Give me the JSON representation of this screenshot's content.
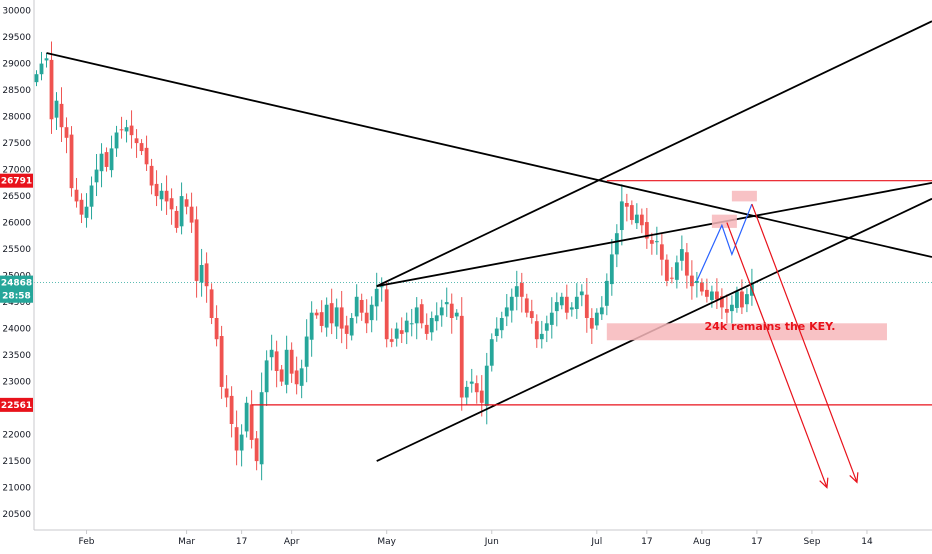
{
  "chart_data": {
    "type": "candlestick",
    "y_ticks": [
      20500,
      21000,
      21500,
      22000,
      22500,
      23000,
      23500,
      24000,
      24500,
      25000,
      25500,
      26000,
      26500,
      27000,
      27500,
      28000,
      28500,
      29000,
      29500,
      30000
    ],
    "x_tick_labels": [
      "Feb",
      "Mar",
      "17",
      "Apr",
      "May",
      "Jun",
      "Jul",
      "17",
      "Aug",
      "17",
      "Sep",
      "14"
    ],
    "x_tick_bars": [
      10,
      30,
      41,
      51,
      70,
      91,
      112,
      122,
      133,
      144,
      155,
      166
    ],
    "ylim": [
      20200,
      30200
    ],
    "xlim": [
      -0.5,
      179
    ],
    "price_badges": [
      {
        "value": 26791,
        "label": "26791",
        "color": "#e8121b"
      },
      {
        "value": 22561,
        "label": "22561",
        "color": "#e8121b"
      },
      {
        "value": 24868,
        "label": "24868",
        "color": "#26a69a"
      },
      {
        "value": 24620,
        "label": "28:58",
        "color": "#26a69a"
      }
    ],
    "last_price": 24868,
    "colors": {
      "up": "#26a69a",
      "down": "#ef5350",
      "line": "#000000",
      "level": "#e8121b",
      "zone": "#f7b7bb"
    },
    "annotation": "24k remains the KEY.",
    "closes": [
      28800,
      29000,
      29100,
      27950,
      28300,
      27800,
      27600,
      26650,
      26400,
      26150,
      26300,
      26700,
      27000,
      27300,
      27050,
      27400,
      27700,
      27750,
      27800,
      27650,
      27500,
      27350,
      27100,
      26700,
      26500,
      26600,
      26400,
      26250,
      25900,
      26500,
      26300,
      26000,
      24900,
      25200,
      24800,
      24200,
      23800,
      22900,
      22700,
      22200,
      21700,
      22000,
      22600,
      21900,
      21500,
      22800,
      23400,
      23600,
      23200,
      23000,
      23600,
      23150,
      22950,
      23250,
      23850,
      24300,
      24250,
      24050,
      24450,
      24100,
      24400,
      24000,
      23900,
      24200,
      24600,
      24300,
      24100,
      24450,
      24750,
      24800,
      23800,
      23750,
      24000,
      23900,
      24150,
      24100,
      24400,
      24100,
      23900,
      24200,
      24250,
      24400,
      24500,
      24200,
      24300,
      22700,
      22900,
      23000,
      22800,
      22600,
      23300,
      23800,
      24000,
      24200,
      24400,
      24600,
      24800,
      24600,
      24300,
      24200,
      23800,
      23900,
      24100,
      24300,
      24500,
      24600,
      24300,
      24400,
      24600,
      24700,
      24200,
      24000,
      24300,
      24400,
      24900,
      25400,
      25800,
      26400,
      26300,
      26050,
      26150,
      25950,
      25700,
      25600,
      25650,
      25300,
      24900,
      24950,
      25250,
      25500,
      25000,
      24800,
      24900,
      24700,
      24600,
      24700,
      24550,
      24400,
      24300,
      24450,
      24700,
      24400,
      24650,
      24868
    ]
  }
}
